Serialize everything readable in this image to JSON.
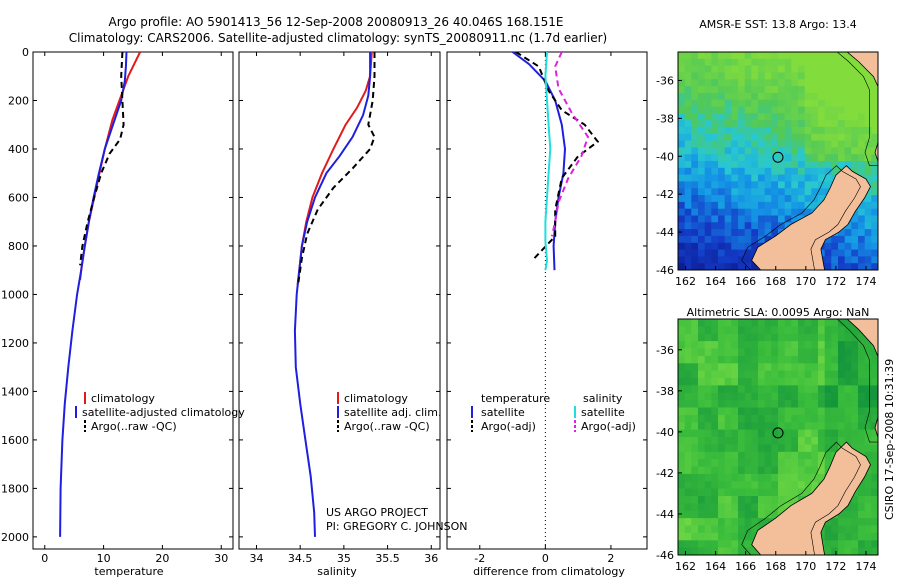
{
  "header": {
    "line1": "Argo profile: AO 5901413_56 12-Sep-2008 20080913_26 40.046S 168.151E",
    "line2": "Climatology: CARS2006. Satellite-adjusted climatology: synTS_20080911.nc (1.7d earlier)"
  },
  "credit": {
    "line1": "US ARGO PROJECT",
    "line2": "PI: GREGORY C. JOHNSON"
  },
  "timestamp": "CSIRO 17-Sep-2008 10:31:39",
  "colors": {
    "climatology": "#e31a1c",
    "satellite": "#1f1fe0",
    "argo": "#000000",
    "satellite_salinity": "#22dddd",
    "argo_salinity": "#dd22dd",
    "land": "#f2bf9a"
  },
  "chart_data": [
    {
      "type": "line",
      "xlabel": "temperature",
      "ylim": [
        0,
        2050
      ],
      "yticks": [
        0,
        200,
        400,
        600,
        800,
        1000,
        1200,
        1400,
        1600,
        1800,
        2000
      ],
      "xlim": [
        -2,
        32
      ],
      "xticks": [
        0,
        10,
        20,
        30
      ],
      "legend": [
        "climatology",
        "satellite-adjusted climatology",
        "Argo(..raw -QC)"
      ],
      "series": [
        {
          "name": "climatology",
          "style": "solid",
          "color": "#e31a1c",
          "x": [
            16.2,
            15.2,
            14.2,
            13.0,
            11.5,
            10.2,
            9.3,
            8.4,
            7.5,
            6.8,
            6.3,
            6.0
          ],
          "y": [
            0,
            50,
            100,
            180,
            280,
            400,
            500,
            600,
            700,
            800,
            880,
            940
          ]
        },
        {
          "name": "satellite-adjusted climatology",
          "style": "solid",
          "color": "#1f1fe0",
          "x": [
            13.9,
            13.8,
            13.6,
            13.0,
            11.6,
            10.2,
            9.2,
            8.3,
            7.5,
            6.8,
            6.2,
            5.5,
            4.7,
            4.0,
            3.4,
            3.0,
            2.7,
            2.6
          ],
          "y": [
            0,
            60,
            120,
            200,
            300,
            400,
            500,
            600,
            700,
            800,
            900,
            1000,
            1150,
            1300,
            1450,
            1600,
            1800,
            2000
          ]
        },
        {
          "name": "Argo(..raw -QC)",
          "style": "dashed",
          "color": "#000000",
          "x": [
            13.2,
            13.0,
            13.2,
            13.4,
            12.8,
            11.0,
            9.6,
            8.4,
            7.3,
            6.4,
            6.0
          ],
          "y": [
            0,
            100,
            200,
            300,
            360,
            420,
            500,
            600,
            700,
            800,
            880
          ]
        }
      ]
    },
    {
      "type": "line",
      "xlabel": "salinity",
      "ylim": [
        0,
        2050
      ],
      "xlim": [
        33.8,
        36.1
      ],
      "xticks": [
        34,
        34.5,
        35,
        35.5,
        36
      ],
      "legend": [
        "climatology",
        "satellite adj. clim.",
        "Argo(..raw -QC)"
      ],
      "series": [
        {
          "name": "climatology",
          "style": "solid",
          "color": "#e31a1c",
          "x": [
            35.32,
            35.3,
            35.25,
            35.15,
            35.02,
            34.88,
            34.75,
            34.64,
            34.57,
            34.52,
            34.49,
            34.47
          ],
          "y": [
            0,
            100,
            160,
            230,
            300,
            400,
            500,
            600,
            700,
            800,
            900,
            960
          ]
        },
        {
          "name": "satellite adj. clim.",
          "style": "solid",
          "color": "#1f1fe0",
          "x": [
            35.3,
            35.3,
            35.28,
            35.22,
            35.1,
            34.95,
            34.8,
            34.67,
            34.58,
            34.52,
            34.49,
            34.46,
            34.44,
            34.45,
            34.5,
            34.56,
            34.62,
            34.66,
            34.67
          ],
          "y": [
            0,
            100,
            180,
            260,
            350,
            430,
            500,
            600,
            700,
            800,
            900,
            1000,
            1150,
            1300,
            1450,
            1600,
            1750,
            1900,
            2000
          ]
        },
        {
          "name": "Argo(..raw -QC)",
          "style": "dashed",
          "color": "#000000",
          "x": [
            35.35,
            35.35,
            35.33,
            35.28,
            35.35,
            35.3,
            35.1,
            34.88,
            34.7,
            34.58,
            34.52,
            34.48
          ],
          "y": [
            0,
            100,
            200,
            300,
            350,
            400,
            480,
            560,
            650,
            750,
            850,
            950
          ]
        }
      ]
    },
    {
      "type": "line",
      "xlabel": "difference from climatology",
      "ylim": [
        0,
        2050
      ],
      "xlim": [
        -3,
        3.1
      ],
      "xticks": [
        -2,
        0,
        2
      ],
      "zero_line": true,
      "legend_titles": [
        "temperature",
        "salinity"
      ],
      "legend": [
        "satellite",
        "Argo(-adj)",
        "satellite",
        "Argo(-adj)"
      ],
      "series": [
        {
          "name": "satellite",
          "group": "temperature",
          "style": "solid",
          "color": "#1f1fe0",
          "x": [
            -1.0,
            -0.5,
            0.0,
            0.3,
            0.5,
            0.6,
            0.55,
            0.4,
            0.3,
            0.25,
            0.28
          ],
          "y": [
            0,
            50,
            120,
            200,
            300,
            400,
            500,
            600,
            700,
            800,
            900
          ]
        },
        {
          "name": "Argo(-adj)",
          "group": "temperature",
          "style": "dashed",
          "color": "#000000",
          "x": [
            -0.9,
            -0.2,
            0.1,
            0.5,
            1.2,
            1.6,
            1.0,
            0.5,
            0.3,
            0.3,
            -0.4
          ],
          "y": [
            0,
            60,
            160,
            240,
            300,
            370,
            430,
            520,
            650,
            760,
            860
          ]
        },
        {
          "name": "satellite",
          "group": "salinity",
          "style": "solid",
          "color": "#22dddd",
          "x": [
            0.05,
            0.0,
            0.05,
            0.1,
            0.15,
            0.1,
            0.05,
            0.0,
            0.0,
            0.05,
            0.0
          ],
          "y": [
            0,
            100,
            200,
            300,
            400,
            500,
            600,
            700,
            780,
            860,
            900
          ]
        },
        {
          "name": "Argo(-adj)",
          "group": "salinity",
          "style": "dashed",
          "color": "#dd22dd",
          "x": [
            0.5,
            0.3,
            0.4,
            0.8,
            1.3,
            1.1,
            0.7,
            0.4,
            0.3,
            0.2
          ],
          "y": [
            0,
            60,
            150,
            250,
            350,
            430,
            520,
            620,
            700,
            760
          ]
        }
      ]
    },
    {
      "type": "heatmap",
      "title": "AMSR-E SST: 13.8 Argo: 13.4",
      "xlim": [
        161.5,
        174.8
      ],
      "ylim": [
        -46,
        -34.5
      ],
      "xticks": [
        162,
        164,
        166,
        168,
        170,
        172,
        174
      ],
      "yticks": [
        -36,
        -38,
        -40,
        -42,
        -44,
        -46
      ],
      "marker": {
        "lon": 168.15,
        "lat": -40.05
      }
    },
    {
      "type": "heatmap",
      "title": "Altimetric SLA: 0.0095 Argo: NaN",
      "xlim": [
        161.5,
        174.8
      ],
      "ylim": [
        -46,
        -34.5
      ],
      "xticks": [
        162,
        164,
        166,
        168,
        170,
        172,
        174
      ],
      "yticks": [
        -36,
        -38,
        -40,
        -42,
        -44,
        -46
      ],
      "marker": {
        "lon": 168.15,
        "lat": -40.05
      }
    }
  ]
}
